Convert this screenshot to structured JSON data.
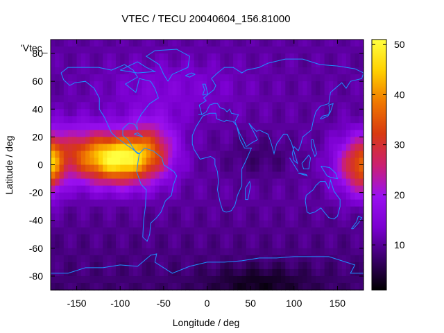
{
  "chart_data": {
    "type": "heatmap",
    "title": "VTEC / TECU 20040604_156.81000",
    "xlabel": "Longitude / deg",
    "ylabel": "Latitude / deg",
    "key_label": "'Vtec_",
    "xlim": [
      -180,
      180
    ],
    "ylim": [
      -90,
      90
    ],
    "x_ticks": [
      -150,
      -100,
      -50,
      0,
      50,
      100,
      150
    ],
    "y_ticks": [
      -80,
      -60,
      -40,
      -20,
      0,
      20,
      40,
      60,
      80
    ],
    "colorbar": {
      "min": 1,
      "max": 51,
      "ticks": [
        10,
        20,
        30,
        40,
        50
      ],
      "palette": [
        "#000000",
        "#3a006a",
        "#7a00d0",
        "#9a10f0",
        "#cc2070",
        "#d83a10",
        "#f07800",
        "#ffd000",
        "#ffff40"
      ]
    },
    "overlay": "coastlines",
    "overlay_color": "#1e90ff",
    "grid": false,
    "legend": "top-left"
  }
}
